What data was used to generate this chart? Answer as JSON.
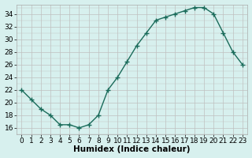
{
  "x": [
    0,
    1,
    2,
    3,
    4,
    5,
    6,
    7,
    8,
    9,
    10,
    11,
    12,
    13,
    14,
    15,
    16,
    17,
    18,
    19,
    20,
    21,
    22,
    23
  ],
  "y": [
    22,
    20.5,
    19,
    18,
    16.5,
    16.5,
    16,
    16.5,
    18,
    22,
    24,
    26.5,
    29,
    31,
    33,
    33.5,
    34,
    34.5,
    35,
    35,
    34,
    31,
    28,
    26
  ],
  "line_color": "#1a6b5a",
  "marker": "+",
  "marker_size": 4,
  "marker_linewidth": 1.0,
  "line_width": 1.0,
  "background_color": "#d7f0ee",
  "grid_color": "#c0c0c0",
  "xlabel": "Humidex (Indice chaleur)",
  "xlabel_fontsize": 7.5,
  "xlabel_fontweight": "bold",
  "xlim": [
    -0.5,
    23.5
  ],
  "ylim": [
    15,
    35.5
  ],
  "yticks": [
    16,
    18,
    20,
    22,
    24,
    26,
    28,
    30,
    32,
    34
  ],
  "xticks": [
    0,
    1,
    2,
    3,
    4,
    5,
    6,
    7,
    8,
    9,
    10,
    11,
    12,
    13,
    14,
    15,
    16,
    17,
    18,
    19,
    20,
    21,
    22,
    23
  ],
  "tick_fontsize": 6.5
}
